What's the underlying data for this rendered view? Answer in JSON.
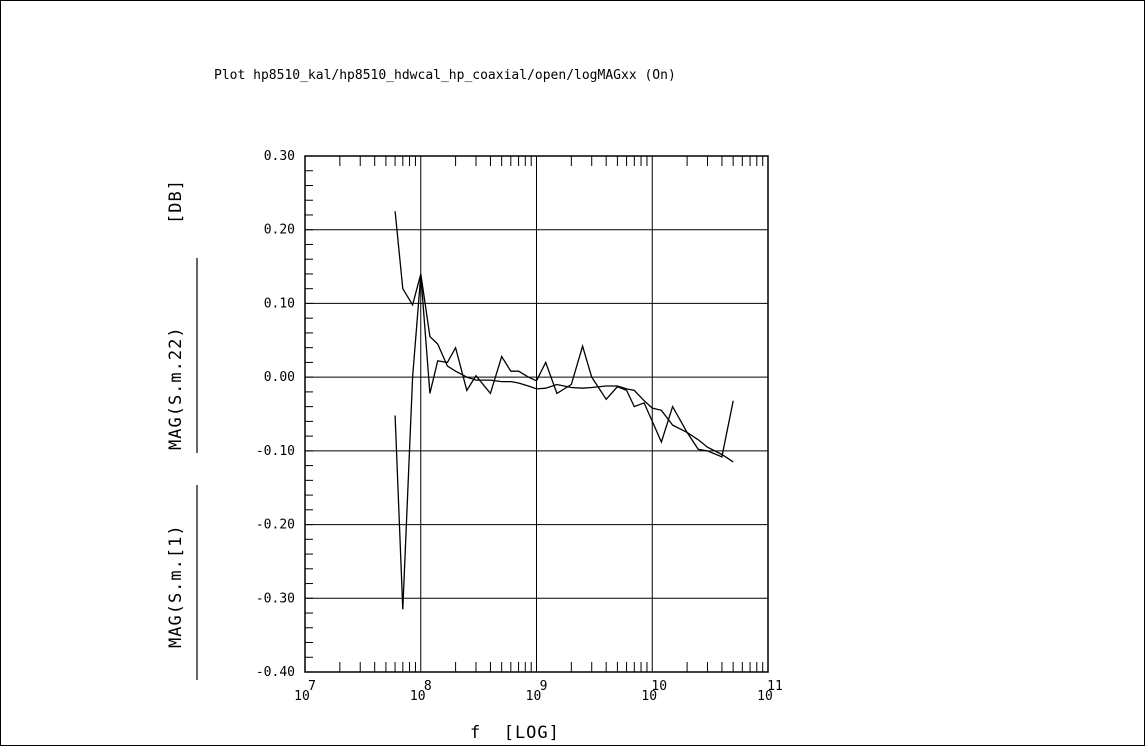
{
  "title": "Plot hp8510_kal/hp8510_hdwcal_hp_coaxial/open/logMAGxx (On)",
  "chart_data": {
    "type": "line",
    "title": "Plot hp8510_kal/hp8510_hdwcal_hp_coaxial/open/logMAGxx (On)",
    "xlabel": "f  [LOG]",
    "ylabel_series": [
      "MAG(S.m.[1)",
      "MAG(S.m.22)"
    ],
    "ylabel_unit": "[DB]",
    "x_scale": "log",
    "xlim": [
      10000000,
      100000000000
    ],
    "ylim": [
      -0.4,
      0.3
    ],
    "grid": true,
    "x_ticks": [
      {
        "base": "10",
        "exp": "7"
      },
      {
        "base": "10",
        "exp": "8"
      },
      {
        "base": "10",
        "exp": "9"
      },
      {
        "base": "10",
        "exp": "10"
      },
      {
        "base": "10",
        "exp": "11"
      }
    ],
    "y_ticks": [
      "0.30",
      "0.20",
      "0.10",
      "0.00",
      "-0.10",
      "-0.20",
      "-0.30",
      "-0.40"
    ],
    "y_tick_values": [
      0.3,
      0.2,
      0.1,
      0.0,
      -0.1,
      -0.2,
      -0.3,
      -0.4
    ],
    "series": [
      {
        "x": [
          60000000.0,
          70000000.0,
          85000000.0,
          100000000.0,
          120000000.0,
          140000000.0,
          170000000.0,
          200000000.0,
          250000000.0,
          300000000.0,
          400000000.0,
          500000000.0,
          600000000.0,
          700000000.0,
          850000000.0,
          1000000000.0,
          1200000000.0,
          1500000000.0,
          2000000000.0,
          2500000000.0,
          3000000000.0,
          4000000000.0,
          5000000000.0,
          6000000000.0,
          7000000000.0,
          8500000000.0,
          10000000000.0,
          12000000000.0,
          15000000000.0,
          20000000000.0,
          25000000000.0,
          30000000000.0,
          40000000000.0,
          50000000000.0
        ],
        "values": [
          -0.052,
          -0.315,
          0.0,
          0.139,
          -0.022,
          0.022,
          0.02,
          0.04,
          -0.018,
          0.002,
          -0.022,
          0.028,
          0.008,
          0.008,
          0.0,
          -0.005,
          0.02,
          -0.022,
          -0.01,
          0.042,
          0.0,
          -0.03,
          -0.013,
          -0.018,
          -0.04,
          -0.035,
          -0.06,
          -0.088,
          -0.04,
          -0.075,
          -0.098,
          -0.1,
          -0.108,
          -0.032
        ]
      },
      {
        "x": [
          60000000.0,
          70000000.0,
          85000000.0,
          100000000.0,
          120000000.0,
          140000000.0,
          170000000.0,
          200000000.0,
          250000000.0,
          300000000.0,
          400000000.0,
          500000000.0,
          600000000.0,
          700000000.0,
          850000000.0,
          1000000000.0,
          1200000000.0,
          1500000000.0,
          2000000000.0,
          2500000000.0,
          3000000000.0,
          4000000000.0,
          5000000000.0,
          6000000000.0,
          7000000000.0,
          8500000000.0,
          10000000000.0,
          12000000000.0,
          15000000000.0,
          20000000000.0,
          25000000000.0,
          30000000000.0,
          40000000000.0,
          50000000000.0
        ],
        "values": [
          0.225,
          0.12,
          0.098,
          0.14,
          0.055,
          0.045,
          0.015,
          0.008,
          0.0,
          -0.004,
          -0.004,
          -0.006,
          -0.006,
          -0.008,
          -0.012,
          -0.016,
          -0.015,
          -0.01,
          -0.014,
          -0.015,
          -0.014,
          -0.012,
          -0.012,
          -0.016,
          -0.018,
          -0.032,
          -0.042,
          -0.045,
          -0.065,
          -0.075,
          -0.085,
          -0.095,
          -0.105,
          -0.115
        ]
      }
    ]
  }
}
